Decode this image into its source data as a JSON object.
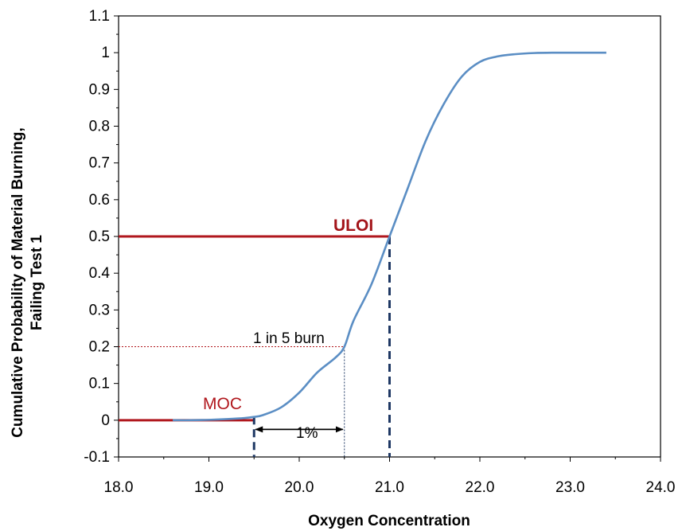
{
  "chart_data": {
    "type": "line",
    "xlabel": "Oxygen Concentration",
    "ylabel_lines": [
      "Cumulative Probability of Material Burning,",
      "Failing Test 1"
    ],
    "xlim": [
      18.0,
      24.0
    ],
    "ylim": [
      -0.1,
      1.1
    ],
    "x_ticks": [
      "18.0",
      "19.0",
      "20.0",
      "21.0",
      "22.0",
      "23.0",
      "24.0"
    ],
    "y_ticks": [
      "-0.1",
      "0",
      "0.1",
      "0.2",
      "0.3",
      "0.4",
      "0.5",
      "0.6",
      "0.7",
      "0.8",
      "0.9",
      "1",
      "1.1"
    ],
    "grid": false,
    "series": [
      {
        "color": "#5b8ec4",
        "x": [
          18.6,
          18.8,
          19.0,
          19.2,
          19.4,
          19.5,
          19.6,
          19.8,
          20.0,
          20.2,
          20.4,
          20.5,
          20.6,
          20.8,
          21.0,
          21.2,
          21.4,
          21.6,
          21.8,
          22.0,
          22.2,
          22.4,
          22.6,
          22.8,
          23.0,
          23.2,
          23.4
        ],
        "y": [
          0.0,
          0.0,
          0.001,
          0.003,
          0.006,
          0.009,
          0.014,
          0.035,
          0.075,
          0.13,
          0.17,
          0.2,
          0.27,
          0.37,
          0.5,
          0.63,
          0.76,
          0.86,
          0.935,
          0.975,
          0.99,
          0.996,
          0.999,
          1.0,
          1.0,
          1.0,
          1.0
        ]
      }
    ],
    "reference_lines": {
      "moc_hline": {
        "y": 0,
        "x_from": 18.0,
        "x_to": 19.5,
        "color": "#b0171d"
      },
      "uloi_hline": {
        "y": 0.5,
        "x_from": 18.0,
        "x_to": 21.0,
        "color": "#b0171d"
      },
      "burn_hline": {
        "y": 0.2,
        "x_from": 18.0,
        "x_to": 20.5,
        "color": "#b0171d"
      },
      "moc_vline": {
        "x": 19.5,
        "y_from": 0.01,
        "y_to": -0.1,
        "color": "#1f3864"
      },
      "burn_vline": {
        "x": 20.5,
        "y_from": 0.2,
        "y_to": -0.1,
        "color": "#1f3864"
      },
      "uloi_vline": {
        "x": 21.0,
        "y_from": 0.5,
        "y_to": -0.1,
        "color": "#1f3864"
      },
      "span_arrow": {
        "x_from": 19.5,
        "x_to": 20.5,
        "y": -0.025
      }
    },
    "annotations": {
      "moc": "MOC",
      "uloi": "ULOI",
      "burn": "1 in 5 burn",
      "span": "1%"
    }
  }
}
